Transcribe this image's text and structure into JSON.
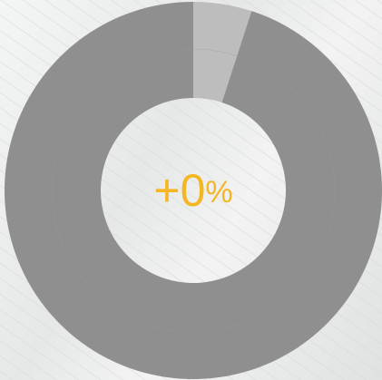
{
  "chart_data": {
    "type": "donut",
    "values": [
      5,
      95
    ],
    "colors": [
      "#bdbdbd",
      "#8f8f8f"
    ],
    "center_label": {
      "number": "+0",
      "unit": "%"
    },
    "label_color": "#f4b623"
  }
}
